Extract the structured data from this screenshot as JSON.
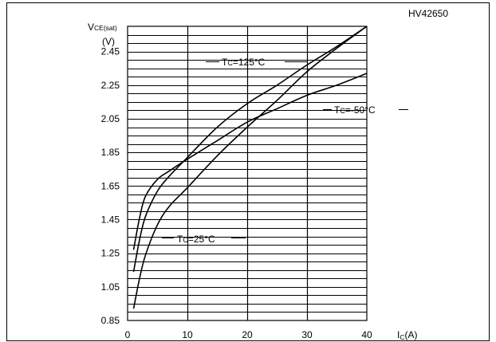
{
  "chart_data": {
    "type": "line",
    "figure_code": "HV42650",
    "ylabel_main": "V",
    "ylabel_sub": "CE(sat)",
    "ylabel_unit": "(V)",
    "xlabel_main": "I",
    "xlabel_sub": "C",
    "xlabel_unit": "(A)",
    "xlim": [
      0,
      40
    ],
    "ylim": [
      0.85,
      2.6
    ],
    "x_ticks": [
      0,
      10,
      20,
      30,
      40
    ],
    "y_ticks": [
      0.85,
      1.05,
      1.25,
      1.45,
      1.65,
      1.85,
      2.05,
      2.25,
      2.45
    ],
    "y_tick_labels": [
      "0.85",
      "1.05",
      "1.25",
      "1.45",
      "1.65",
      "1.85",
      "2.05",
      "2.25",
      "2.45"
    ],
    "x_tick_labels": [
      "0",
      "10",
      "20",
      "30",
      "40"
    ],
    "grid": true,
    "series": [
      {
        "name_main": "T",
        "name_sub": "C",
        "name_value": "=25°C",
        "x": [
          1,
          2,
          3,
          5,
          7,
          10,
          15,
          20,
          25,
          30,
          35,
          40
        ],
        "y": [
          0.92,
          1.1,
          1.24,
          1.42,
          1.53,
          1.64,
          1.83,
          2.0,
          2.16,
          2.33,
          2.47,
          2.6
        ]
      },
      {
        "name_main": "T",
        "name_sub": "C",
        "name_value": "=125°C",
        "x": [
          1,
          2,
          3,
          5,
          7,
          10,
          15,
          20,
          25,
          30,
          35,
          40
        ],
        "y": [
          1.14,
          1.33,
          1.47,
          1.62,
          1.71,
          1.82,
          2.0,
          2.14,
          2.25,
          2.37,
          2.48,
          2.6
        ]
      },
      {
        "name_main": "T",
        "name_sub": "C",
        "name_value": "=-50°C",
        "x": [
          1,
          2,
          3,
          5,
          7,
          10,
          15,
          20,
          25,
          30,
          35,
          40
        ],
        "y": [
          1.27,
          1.46,
          1.59,
          1.69,
          1.74,
          1.81,
          1.92,
          2.03,
          2.11,
          2.19,
          2.25,
          2.32
        ]
      }
    ]
  }
}
